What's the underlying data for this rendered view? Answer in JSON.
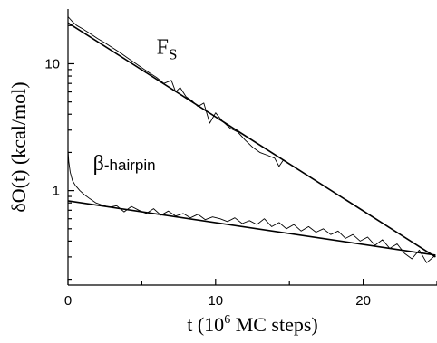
{
  "chart_data": {
    "type": "line",
    "title": "",
    "xlabel": "t (10^6 MC steps)",
    "ylabel": "δO(t)  (kcal/mol)",
    "xlim": [
      0,
      25
    ],
    "ylim": [
      0.18,
      27
    ],
    "yscale": "log",
    "grid": false,
    "legend": "none",
    "x_ticks": [
      0,
      10,
      20
    ],
    "y_ticks": [
      1,
      10
    ],
    "annotations": [
      {
        "text": "F",
        "sub": "S",
        "at_x": 6.0,
        "at_y": 12.0
      },
      {
        "text": "β",
        "suffix": "-hairpin",
        "at_x": 1.7,
        "at_y": 1.45
      }
    ],
    "fits": [
      {
        "x": [
          0,
          24.9
        ],
        "y": [
          21,
          0.3
        ]
      },
      {
        "x": [
          0,
          24.9
        ],
        "y": [
          0.83,
          0.31
        ]
      }
    ],
    "series": [
      {
        "x": [
          0,
          0.3,
          0.6,
          1.0,
          1.5,
          2.0,
          2.5,
          3.0,
          3.5,
          4.0,
          4.5,
          5.0,
          5.5,
          6.0,
          6.5,
          7.0,
          7.3,
          7.6,
          8.0,
          8.4,
          8.8,
          9.2,
          9.6,
          10.0,
          10.5,
          11.0,
          11.5,
          12.0,
          12.5,
          13.0,
          13.5,
          14.0,
          14.3,
          14.6,
          15.0
        ],
        "y": [
          23.5,
          21.5,
          20.0,
          18.8,
          17.3,
          15.8,
          14.6,
          13.4,
          12.3,
          11.2,
          10.2,
          9.3,
          8.5,
          7.8,
          7.0,
          7.4,
          6.0,
          6.5,
          5.5,
          5.1,
          4.6,
          4.9,
          3.4,
          4.1,
          3.5,
          3.1,
          2.9,
          2.5,
          2.2,
          2.0,
          1.9,
          1.8,
          1.55,
          1.75,
          1.62
        ]
      },
      {
        "x": [
          0,
          0.05,
          0.15,
          0.3,
          0.5,
          0.8,
          1.1,
          1.5,
          1.9,
          2.3,
          2.8,
          3.3,
          3.8,
          4.3,
          4.8,
          5.3,
          5.8,
          6.3,
          6.8,
          7.3,
          7.8,
          8.3,
          8.8,
          9.3,
          9.8,
          10.3,
          10.8,
          11.3,
          11.8,
          12.3,
          12.8,
          13.3,
          13.8,
          14.3,
          14.8,
          15.3,
          15.8,
          16.3,
          16.8,
          17.3,
          17.8,
          18.3,
          18.8,
          19.3,
          19.8,
          20.3,
          20.8,
          21.3,
          21.8,
          22.3,
          22.8,
          23.3,
          23.8,
          24.3,
          24.9
        ],
        "y": [
          2.1,
          1.7,
          1.4,
          1.2,
          1.1,
          1.0,
          0.93,
          0.86,
          0.8,
          0.77,
          0.74,
          0.76,
          0.68,
          0.75,
          0.7,
          0.66,
          0.72,
          0.64,
          0.69,
          0.63,
          0.66,
          0.61,
          0.65,
          0.59,
          0.62,
          0.6,
          0.57,
          0.61,
          0.55,
          0.58,
          0.54,
          0.6,
          0.52,
          0.56,
          0.5,
          0.54,
          0.48,
          0.52,
          0.47,
          0.5,
          0.45,
          0.48,
          0.42,
          0.45,
          0.4,
          0.43,
          0.37,
          0.41,
          0.35,
          0.38,
          0.32,
          0.29,
          0.34,
          0.27,
          0.31
        ]
      }
    ]
  }
}
